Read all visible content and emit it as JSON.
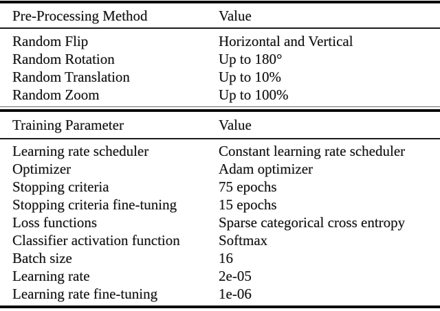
{
  "table": {
    "sections": [
      {
        "header": {
          "col1": "Pre-Processing Method",
          "col2": "Value"
        },
        "rows": [
          {
            "param": "Random Flip",
            "value": "Horizontal and Vertical"
          },
          {
            "param": "Random Rotation",
            "value": "Up to 180°"
          },
          {
            "param": "Random Translation",
            "value": "Up to 10%"
          },
          {
            "param": "Random Zoom",
            "value": "Up to 100%"
          }
        ]
      },
      {
        "header": {
          "col1": "Training Parameter",
          "col2": "Value"
        },
        "rows": [
          {
            "param": "Learning rate scheduler",
            "value": "Constant learning rate scheduler"
          },
          {
            "param": "Optimizer",
            "value": "Adam optimizer"
          },
          {
            "param": "Stopping criteria",
            "value": "75 epochs"
          },
          {
            "param": "Stopping criteria fine-tuning",
            "value": "15 epochs"
          },
          {
            "param": "Loss functions",
            "value": "Sparse categorical cross entropy"
          },
          {
            "param": "Classifier activation function",
            "value": "Softmax"
          },
          {
            "param": "Batch size",
            "value": "16"
          },
          {
            "param": "Learning rate",
            "value": "2e-05"
          },
          {
            "param": "Learning rate fine-tuning",
            "value": "1e-06"
          }
        ]
      }
    ],
    "colors": {
      "text": "#151515",
      "rule": "#0a0a0a",
      "background": "#ffffff"
    }
  }
}
